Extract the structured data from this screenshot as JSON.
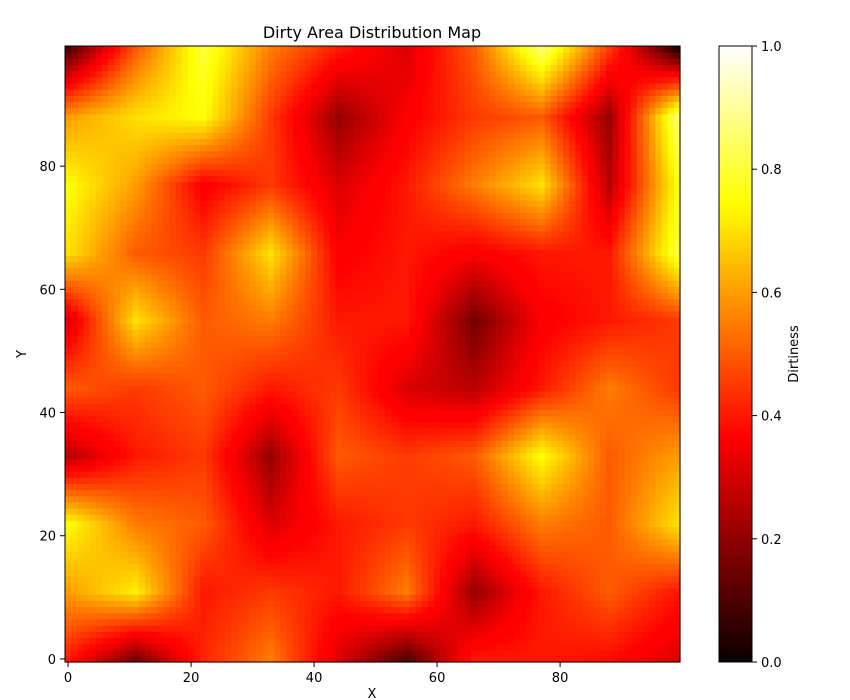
{
  "chart_data": {
    "type": "heatmap",
    "title": "Dirty Area Distribution Map",
    "xlabel": "X",
    "ylabel": "Y",
    "xlim": [
      0,
      100
    ],
    "ylim": [
      0,
      100
    ],
    "x_ticks": [
      "0",
      "20",
      "40",
      "60",
      "80"
    ],
    "y_ticks": [
      "0",
      "20",
      "40",
      "60",
      "80"
    ],
    "colorbar": {
      "label": "Dirtiness",
      "range": [
        0.0,
        1.0
      ],
      "ticks": [
        "0.0",
        "0.2",
        "0.4",
        "0.6",
        "0.8",
        "1.0"
      ],
      "colormap": "hot"
    },
    "grid": false,
    "values_sample_step": 10,
    "values_rows_bottom_to_top": [
      [
        0.4,
        0.15,
        0.42,
        0.55,
        0.3,
        0.1,
        0.4,
        0.4,
        0.38,
        0.3
      ],
      [
        0.6,
        0.72,
        0.4,
        0.45,
        0.4,
        0.55,
        0.2,
        0.4,
        0.5,
        0.4
      ],
      [
        0.75,
        0.55,
        0.5,
        0.3,
        0.4,
        0.45,
        0.4,
        0.55,
        0.5,
        0.7
      ],
      [
        0.25,
        0.4,
        0.45,
        0.2,
        0.5,
        0.45,
        0.5,
        0.75,
        0.5,
        0.6
      ],
      [
        0.5,
        0.45,
        0.5,
        0.4,
        0.45,
        0.3,
        0.25,
        0.4,
        0.55,
        0.45
      ],
      [
        0.3,
        0.7,
        0.5,
        0.55,
        0.4,
        0.4,
        0.15,
        0.35,
        0.4,
        0.45
      ],
      [
        0.7,
        0.5,
        0.45,
        0.7,
        0.35,
        0.4,
        0.35,
        0.4,
        0.4,
        0.8
      ],
      [
        0.75,
        0.6,
        0.35,
        0.45,
        0.3,
        0.4,
        0.55,
        0.7,
        0.25,
        0.75
      ],
      [
        0.6,
        0.7,
        0.75,
        0.45,
        0.2,
        0.35,
        0.45,
        0.5,
        0.2,
        0.85
      ],
      [
        0.1,
        0.5,
        0.8,
        0.55,
        0.4,
        0.3,
        0.5,
        0.85,
        0.45,
        0.05
      ]
    ]
  }
}
